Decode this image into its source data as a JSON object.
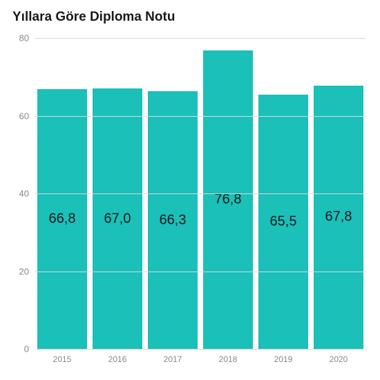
{
  "chart": {
    "type": "bar",
    "title": "Yıllara Göre Diploma Notu",
    "title_fontsize": 19,
    "title_color": "#1a1a1a",
    "background_color": "#ffffff",
    "grid_color": "#d9d9d9",
    "axis_label_color": "#888888",
    "axis_label_fontsize": 13,
    "x_label_fontsize": 12,
    "bar_color": "#1bc0b8",
    "bar_width": 0.9,
    "value_label_fontsize": 20,
    "value_label_color": "#1a1a1a",
    "ylim": [
      0,
      80
    ],
    "yticks": [
      0,
      20,
      40,
      60,
      80
    ],
    "categories": [
      "2015",
      "2016",
      "2017",
      "2018",
      "2019",
      "2020"
    ],
    "values": [
      66.8,
      67.0,
      66.3,
      76.8,
      65.5,
      67.8
    ],
    "value_labels": [
      "66,8",
      "67,0",
      "66,3",
      "76,8",
      "65,5",
      "67,8"
    ]
  }
}
